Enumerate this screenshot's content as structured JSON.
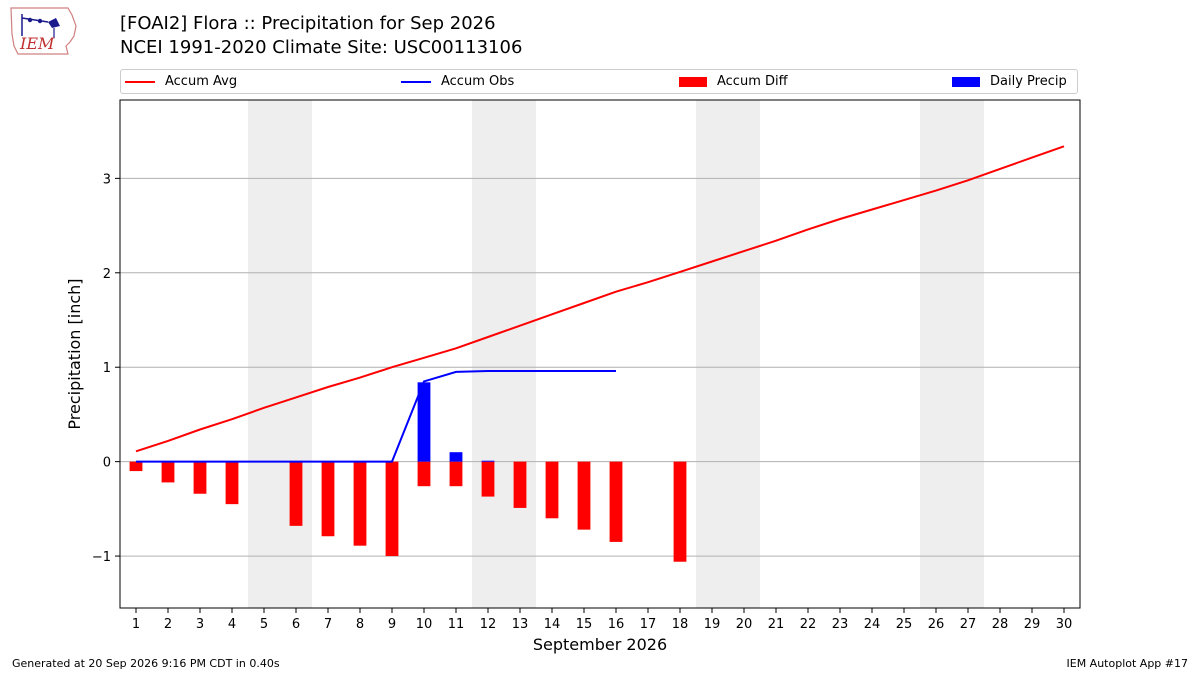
{
  "logo": {
    "text": "IEM",
    "icon": "iem-iowa-logo-icon"
  },
  "title": {
    "line1": "[FOAI2] Flora :: Precipitation for Sep 2026",
    "line2": "NCEI 1991-2020 Climate Site: USC00113106"
  },
  "legend": [
    {
      "label": "Accum Avg",
      "kind": "line",
      "color": "#ff0000"
    },
    {
      "label": "Accum Obs",
      "kind": "line",
      "color": "#0000ff"
    },
    {
      "label": "Accum Diff",
      "kind": "patch",
      "color": "#ff0000"
    },
    {
      "label": "Daily Precip",
      "kind": "patch",
      "color": "#0000ff"
    }
  ],
  "footer": {
    "left": "Generated at 20 Sep 2026 9:16 PM CDT in 0.40s",
    "right": "IEM Autoplot App #17"
  },
  "chart_data": {
    "type": "bar",
    "xlabel": "September 2026",
    "ylabel": "Precipitation [inch]",
    "xlim": [
      0.5,
      30.5
    ],
    "ylim": [
      -1.55,
      3.83
    ],
    "yticks": [
      -1,
      0,
      1,
      2,
      3
    ],
    "ytick_labels": [
      "−1",
      "0",
      "1",
      "2",
      "3"
    ],
    "xticks": [
      1,
      2,
      3,
      4,
      5,
      6,
      7,
      8,
      9,
      10,
      11,
      12,
      13,
      14,
      15,
      16,
      17,
      18,
      19,
      20,
      21,
      22,
      23,
      24,
      25,
      26,
      27,
      28,
      29,
      30
    ],
    "grid": "horizontal",
    "weekend_shading": [
      [
        4.5,
        6.5
      ],
      [
        11.5,
        13.5
      ],
      [
        18.5,
        20.5
      ],
      [
        25.5,
        27.5
      ]
    ],
    "shading_color": "#eeeeee",
    "accum_avg": {
      "name": "Accum Avg",
      "color": "#ff0000",
      "x": [
        1,
        2,
        3,
        4,
        5,
        6,
        7,
        8,
        9,
        10,
        11,
        12,
        13,
        14,
        15,
        16,
        17,
        18,
        19,
        20,
        21,
        22,
        23,
        24,
        25,
        26,
        27,
        28,
        29,
        30
      ],
      "values": [
        0.11,
        0.22,
        0.34,
        0.45,
        0.57,
        0.68,
        0.79,
        0.89,
        1.0,
        1.1,
        1.2,
        1.32,
        1.44,
        1.56,
        1.68,
        1.8,
        1.9,
        2.01,
        2.12,
        2.23,
        2.34,
        2.46,
        2.57,
        2.67,
        2.77,
        2.87,
        2.98,
        3.1,
        3.22,
        3.34
      ]
    },
    "accum_obs": {
      "name": "Accum Obs",
      "color": "#0000ff",
      "x": [
        1,
        2,
        3,
        4,
        6,
        7,
        8,
        9,
        10,
        11,
        12,
        13,
        14,
        15,
        16
      ],
      "values": [
        0,
        0,
        0,
        0,
        0,
        0,
        0,
        0,
        0.85,
        0.95,
        0.96,
        0.96,
        0.96,
        0.96,
        0.96
      ]
    },
    "accum_diff": {
      "name": "Accum Diff",
      "color": "#ff0000",
      "x": [
        1,
        2,
        3,
        4,
        6,
        7,
        8,
        9,
        10,
        11,
        12,
        13,
        14,
        15,
        16,
        18
      ],
      "values": [
        -0.1,
        -0.22,
        -0.34,
        -0.45,
        -0.68,
        -0.79,
        -0.89,
        -1.0,
        -0.26,
        -0.26,
        -0.37,
        -0.49,
        -0.6,
        -0.72,
        -0.85,
        -1.06
      ]
    },
    "daily_precip": {
      "name": "Daily Precip",
      "color": "#0000ff",
      "x": [
        10,
        11,
        12
      ],
      "values": [
        0.84,
        0.1,
        0.01
      ]
    }
  }
}
